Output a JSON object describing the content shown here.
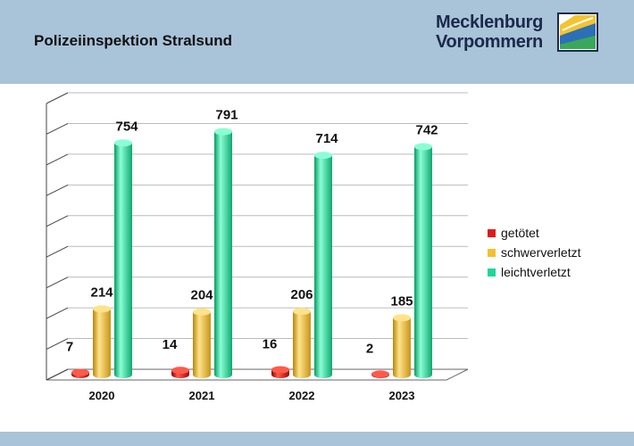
{
  "header": {
    "title": "Polizeiinspektion Stralsund",
    "logo_line1": "Mecklenburg",
    "logo_line2": "Vorpommern"
  },
  "chart_data": {
    "type": "bar",
    "categories": [
      "2020",
      "2021",
      "2022",
      "2023"
    ],
    "series": [
      {
        "name": "getötet",
        "values": [
          7,
          14,
          16,
          2
        ],
        "color": "#e01a1a"
      },
      {
        "name": "schwerverletzt",
        "values": [
          214,
          204,
          206,
          185
        ],
        "color": "#f2c12e"
      },
      {
        "name": "leichtverletzt",
        "values": [
          754,
          791,
          714,
          742
        ],
        "color": "#1ed79a"
      }
    ],
    "ylim": [
      0,
      900
    ],
    "grid": true,
    "legend": "right"
  }
}
